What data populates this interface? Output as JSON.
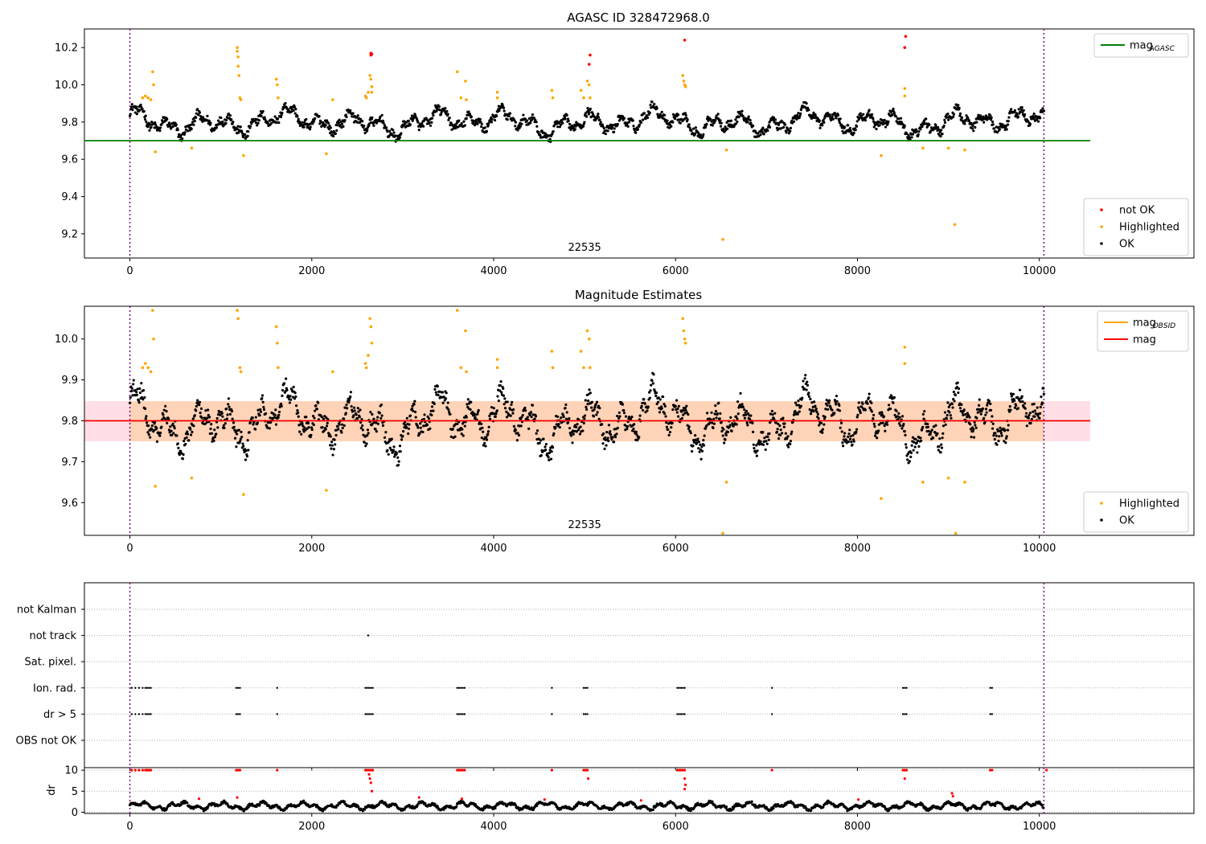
{
  "chart_data": [
    {
      "type": "scatter",
      "title": "AGASC ID 328472968.0",
      "xlim": [
        -500,
        11700
      ],
      "ylim": [
        9.07,
        10.3
      ],
      "xticks": [
        0,
        2000,
        4000,
        6000,
        8000,
        10000
      ],
      "yticks": [
        9.2,
        9.4,
        9.6,
        9.8,
        10.0,
        10.2
      ],
      "ytick_format": 1,
      "obsid_label": "22535",
      "obsid_label_x": 5000,
      "vlines": [
        0,
        10050
      ],
      "hline": {
        "name": "mag_AGASC",
        "value": 9.7,
        "x_range": [
          -500,
          10560
        ],
        "color": "#008000"
      },
      "band_series": {
        "center": 9.8,
        "amp": 0.075,
        "min": 9.68,
        "max": 9.93
      },
      "series": [
        {
          "name": "not OK",
          "color": "#ff0000",
          "points": [
            [
              2650,
              10.16
            ],
            [
              2650,
              10.17
            ],
            [
              2660,
              10.165
            ],
            [
              5050,
              10.11
            ],
            [
              5060,
              10.16
            ],
            [
              6100,
              10.24
            ],
            [
              8530,
              10.26
            ],
            [
              8520,
              10.2
            ]
          ]
        },
        {
          "name": "Highlighted",
          "color": "#ffa500",
          "points": [
            [
              140,
              9.93
            ],
            [
              170,
              9.94
            ],
            [
              200,
              9.93
            ],
            [
              230,
              9.92
            ],
            [
              250,
              10.07
            ],
            [
              260,
              10.0
            ],
            [
              280,
              9.64
            ],
            [
              680,
              9.66
            ],
            [
              1180,
              10.2
            ],
            [
              1180,
              10.18
            ],
            [
              1190,
              10.15
            ],
            [
              1190,
              10.1
            ],
            [
              1200,
              10.05
            ],
            [
              1210,
              9.93
            ],
            [
              1220,
              9.92
            ],
            [
              1250,
              9.62
            ],
            [
              1610,
              10.03
            ],
            [
              1620,
              10.0
            ],
            [
              1630,
              9.93
            ],
            [
              2160,
              9.63
            ],
            [
              2230,
              9.92
            ],
            [
              2590,
              9.94
            ],
            [
              2600,
              9.93
            ],
            [
              2620,
              9.96
            ],
            [
              2640,
              10.05
            ],
            [
              2650,
              10.03
            ],
            [
              2660,
              9.99
            ],
            [
              2660,
              9.96
            ],
            [
              3600,
              10.07
            ],
            [
              3640,
              9.93
            ],
            [
              3690,
              10.02
            ],
            [
              3700,
              9.92
            ],
            [
              4040,
              9.96
            ],
            [
              4040,
              9.93
            ],
            [
              4640,
              9.97
            ],
            [
              4650,
              9.93
            ],
            [
              4960,
              9.97
            ],
            [
              4990,
              9.93
            ],
            [
              5030,
              10.02
            ],
            [
              5050,
              10.0
            ],
            [
              5060,
              9.93
            ],
            [
              6080,
              10.05
            ],
            [
              6090,
              10.02
            ],
            [
              6100,
              10.0
            ],
            [
              6110,
              9.99
            ],
            [
              6520,
              9.17
            ],
            [
              6560,
              9.65
            ],
            [
              8260,
              9.62
            ],
            [
              8520,
              9.98
            ],
            [
              8520,
              9.94
            ],
            [
              8720,
              9.66
            ],
            [
              9070,
              9.25
            ],
            [
              9000,
              9.66
            ],
            [
              9180,
              9.65
            ]
          ]
        },
        {
          "name": "OK",
          "color": "#000000"
        }
      ],
      "legends": [
        {
          "items": [
            {
              "label": "mag",
              "sub": "AGASC",
              "kind": "line",
              "color": "#008000"
            }
          ]
        },
        {
          "items": [
            {
              "label": "not OK",
              "kind": "dot",
              "color": "#ff0000"
            },
            {
              "label": "Highlighted",
              "kind": "dot",
              "color": "#ffa500"
            },
            {
              "label": "OK",
              "kind": "dot",
              "color": "#000000"
            }
          ]
        }
      ]
    },
    {
      "type": "scatter",
      "title": "Magnitude Estimates",
      "xlim": [
        -500,
        11700
      ],
      "ylim": [
        9.52,
        10.08
      ],
      "xticks": [
        0,
        2000,
        4000,
        6000,
        8000,
        10000
      ],
      "yticks": [
        9.6,
        9.7,
        9.8,
        9.9,
        10.0
      ],
      "ytick_format": 1,
      "obsid_label": "22535",
      "obsid_label_x": 5000,
      "vlines": [
        0,
        10050
      ],
      "band": {
        "low": 9.75,
        "high": 9.848,
        "x_range": [
          -500,
          10560
        ],
        "color": "#ffc0cb"
      },
      "hline": {
        "name": "mag",
        "value": 9.8,
        "x_range": [
          -500,
          10560
        ],
        "color": "#ff0000"
      },
      "obsid_band": {
        "low": 9.75,
        "high": 9.848,
        "x_range": [
          0,
          10050
        ],
        "color": "#ffa500"
      },
      "series": [
        {
          "name": "Highlighted",
          "color": "#ffa500",
          "points": [
            [
              140,
              9.93
            ],
            [
              170,
              9.94
            ],
            [
              200,
              9.93
            ],
            [
              230,
              9.92
            ],
            [
              250,
              10.07
            ],
            [
              260,
              10.0
            ],
            [
              280,
              9.64
            ],
            [
              680,
              9.66
            ],
            [
              1180,
              10.07
            ],
            [
              1190,
              10.05
            ],
            [
              1210,
              9.93
            ],
            [
              1220,
              9.92
            ],
            [
              1250,
              9.62
            ],
            [
              1610,
              10.03
            ],
            [
              1620,
              9.99
            ],
            [
              1630,
              9.93
            ],
            [
              2160,
              9.63
            ],
            [
              2230,
              9.92
            ],
            [
              2590,
              9.94
            ],
            [
              2600,
              9.93
            ],
            [
              2620,
              9.96
            ],
            [
              2640,
              10.05
            ],
            [
              2650,
              10.03
            ],
            [
              2660,
              9.99
            ],
            [
              3600,
              10.07
            ],
            [
              3640,
              9.93
            ],
            [
              3690,
              10.02
            ],
            [
              3700,
              9.92
            ],
            [
              4040,
              9.95
            ],
            [
              4040,
              9.93
            ],
            [
              4640,
              9.97
            ],
            [
              4650,
              9.93
            ],
            [
              4960,
              9.97
            ],
            [
              4990,
              9.93
            ],
            [
              5030,
              10.02
            ],
            [
              5050,
              10.0
            ],
            [
              5060,
              9.93
            ],
            [
              6080,
              10.05
            ],
            [
              6090,
              10.02
            ],
            [
              6100,
              10.0
            ],
            [
              6110,
              9.99
            ],
            [
              6520,
              9.525
            ],
            [
              6560,
              9.65
            ],
            [
              8260,
              9.61
            ],
            [
              8520,
              9.98
            ],
            [
              8520,
              9.94
            ],
            [
              8720,
              9.65
            ],
            [
              9080,
              9.525
            ],
            [
              9000,
              9.66
            ],
            [
              9180,
              9.65
            ]
          ]
        },
        {
          "name": "OK",
          "color": "#000000"
        }
      ],
      "legends": [
        {
          "items": [
            {
              "label": "mag",
              "sub": "OBSID",
              "kind": "line",
              "color": "#ffa500"
            },
            {
              "label": "mag",
              "kind": "line",
              "color": "#ff0000"
            }
          ]
        },
        {
          "items": [
            {
              "label": "Highlighted",
              "kind": "dot",
              "color": "#ffa500"
            },
            {
              "label": "OK",
              "kind": "dot",
              "color": "#000000"
            }
          ]
        }
      ]
    },
    {
      "type": "scatter",
      "xlim": [
        -500,
        11700
      ],
      "xticks": [
        0,
        2000,
        4000,
        6000,
        8000,
        10000
      ],
      "vlines": [
        0,
        10050
      ],
      "categories": [
        "not Kalman",
        "not track",
        "Sat. pixel.",
        "Ion. rad.",
        "dr > 5",
        "OBS not OK"
      ],
      "flag_points": [
        {
          "category": "not track",
          "x": [
            2620
          ]
        },
        {
          "category": "Ion. rad.",
          "x": [
            20,
            60,
            100,
            140,
            170,
            190,
            210,
            230,
            1170,
            1190,
            1210,
            1620,
            2590,
            2610,
            2630,
            2650,
            2670,
            3600,
            3620,
            3640,
            3660,
            3680,
            4640,
            4990,
            5010,
            5030,
            6020,
            6040,
            6060,
            6080,
            6100,
            7060,
            8500,
            8520,
            8540,
            9460,
            9480
          ]
        },
        {
          "category": "dr > 5",
          "x": [
            20,
            60,
            100,
            140,
            170,
            190,
            210,
            230,
            1170,
            1190,
            1210,
            1620,
            2590,
            2610,
            2630,
            2650,
            2670,
            3600,
            3620,
            3640,
            3660,
            3680,
            4640,
            4990,
            5010,
            5030,
            6020,
            6040,
            6060,
            6080,
            6100,
            7060,
            8500,
            8520,
            8540,
            9460,
            9480
          ]
        }
      ]
    },
    {
      "type": "scatter",
      "xlim": [
        -500,
        11700
      ],
      "ylim": [
        -0.3,
        10.6
      ],
      "xticks": [
        0,
        2000,
        4000,
        6000,
        8000,
        10000
      ],
      "yticks": [
        0,
        5,
        10
      ],
      "ylabel": "dr",
      "vlines": [
        0,
        10050
      ],
      "series": [
        {
          "name": "dr",
          "color": "#000000"
        },
        {
          "name": "dr > 5",
          "color": "#ff0000",
          "points": [
            [
              20,
              10
            ],
            [
              60,
              10
            ],
            [
              100,
              10
            ],
            [
              140,
              10
            ],
            [
              170,
              10
            ],
            [
              190,
              10
            ],
            [
              210,
              10
            ],
            [
              230,
              10
            ],
            [
              1170,
              10
            ],
            [
              1190,
              10
            ],
            [
              1210,
              10
            ],
            [
              1620,
              10
            ],
            [
              2590,
              10
            ],
            [
              2610,
              10
            ],
            [
              2630,
              10
            ],
            [
              2650,
              10
            ],
            [
              2670,
              10
            ],
            [
              2630,
              9
            ],
            [
              2640,
              8
            ],
            [
              2650,
              7
            ],
            [
              2660,
              5
            ],
            [
              3600,
              10
            ],
            [
              3620,
              10
            ],
            [
              3640,
              10
            ],
            [
              3660,
              10
            ],
            [
              3680,
              10
            ],
            [
              4640,
              10
            ],
            [
              4990,
              10
            ],
            [
              5010,
              10
            ],
            [
              5030,
              10
            ],
            [
              5040,
              8
            ],
            [
              6020,
              10
            ],
            [
              6040,
              10
            ],
            [
              6060,
              10
            ],
            [
              6080,
              10
            ],
            [
              6100,
              10
            ],
            [
              6100,
              8
            ],
            [
              6110,
              6.5
            ],
            [
              6100,
              5.5
            ],
            [
              7060,
              10
            ],
            [
              8500,
              10
            ],
            [
              8520,
              10
            ],
            [
              8540,
              10
            ],
            [
              8520,
              8
            ],
            [
              9460,
              10
            ],
            [
              9480,
              10
            ],
            [
              10080,
              10
            ],
            [
              760,
              3.2
            ],
            [
              1180,
              3.5
            ],
            [
              3180,
              3.5
            ],
            [
              3650,
              3.2
            ],
            [
              4560,
              3.0
            ],
            [
              5620,
              2.8
            ],
            [
              9040,
              4.5
            ],
            [
              9050,
              3.8
            ],
            [
              8010,
              3.0
            ]
          ]
        }
      ]
    }
  ]
}
